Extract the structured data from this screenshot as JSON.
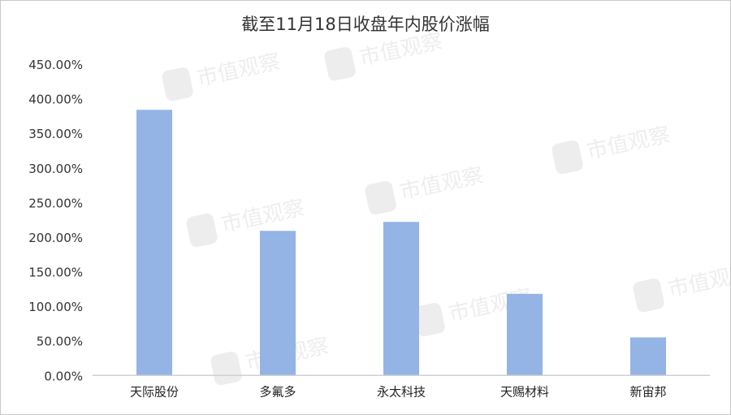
{
  "chart_data": {
    "type": "bar",
    "title": "截至11月18日收盘年内股价涨幅",
    "categories": [
      "天际股份",
      "多氟多",
      "永太科技",
      "天赐材料",
      "新宙邦"
    ],
    "values": [
      384,
      209,
      222,
      118,
      55
    ],
    "value_unit": "%",
    "ylim": [
      0,
      450
    ],
    "yticks": [
      "0.00%",
      "50.00%",
      "100.00%",
      "150.00%",
      "200.00%",
      "250.00%",
      "300.00%",
      "350.00%",
      "400.00%",
      "450.00%"
    ],
    "grid": false,
    "legend": "none",
    "bar_color": "#93b4e4",
    "watermark": "市值观察"
  }
}
